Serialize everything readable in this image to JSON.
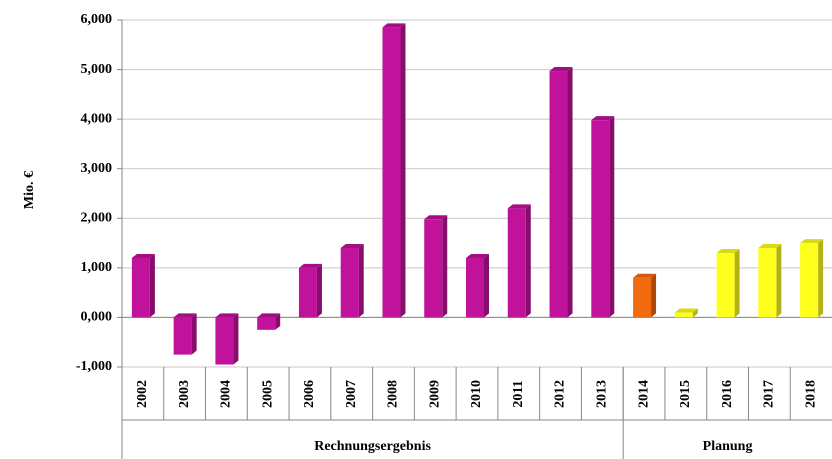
{
  "chart_data": {
    "type": "bar",
    "y_label": "Mio. €",
    "categories": [
      "2002",
      "2003",
      "2004",
      "2005",
      "2006",
      "2007",
      "2008",
      "2009",
      "2010",
      "2011",
      "2012",
      "2013",
      "2014",
      "2015",
      "2016",
      "2017",
      "2018"
    ],
    "values": [
      1200,
      -750,
      -950,
      -250,
      1000,
      1400,
      5850,
      1980,
      1200,
      2200,
      4970,
      3980,
      800,
      100,
      1300,
      1400,
      1500
    ],
    "colors": [
      "#c0129a",
      "#c0129a",
      "#c0129a",
      "#c0129a",
      "#c0129a",
      "#c0129a",
      "#c0129a",
      "#c0129a",
      "#c0129a",
      "#c0129a",
      "#c0129a",
      "#c0129a",
      "#f26a10",
      "#ffff1e",
      "#ffff1e",
      "#ffff1e",
      "#ffff1e"
    ],
    "groups": [
      {
        "label": "Rechnungsergebnis",
        "span": 12
      },
      {
        "label": "Planung",
        "span": 5
      }
    ],
    "ylim": [
      -1000,
      6000
    ],
    "yticks": [
      {
        "value": -1000,
        "label": "-1,000"
      },
      {
        "value": 0,
        "label": "0,000"
      },
      {
        "value": 1000,
        "label": "1,000"
      },
      {
        "value": 2000,
        "label": "2,000"
      },
      {
        "value": 3000,
        "label": "3,000"
      },
      {
        "value": 4000,
        "label": "4,000"
      },
      {
        "value": 5000,
        "label": "5,000"
      },
      {
        "value": 6000,
        "label": "6,000"
      }
    ],
    "grid": true
  }
}
